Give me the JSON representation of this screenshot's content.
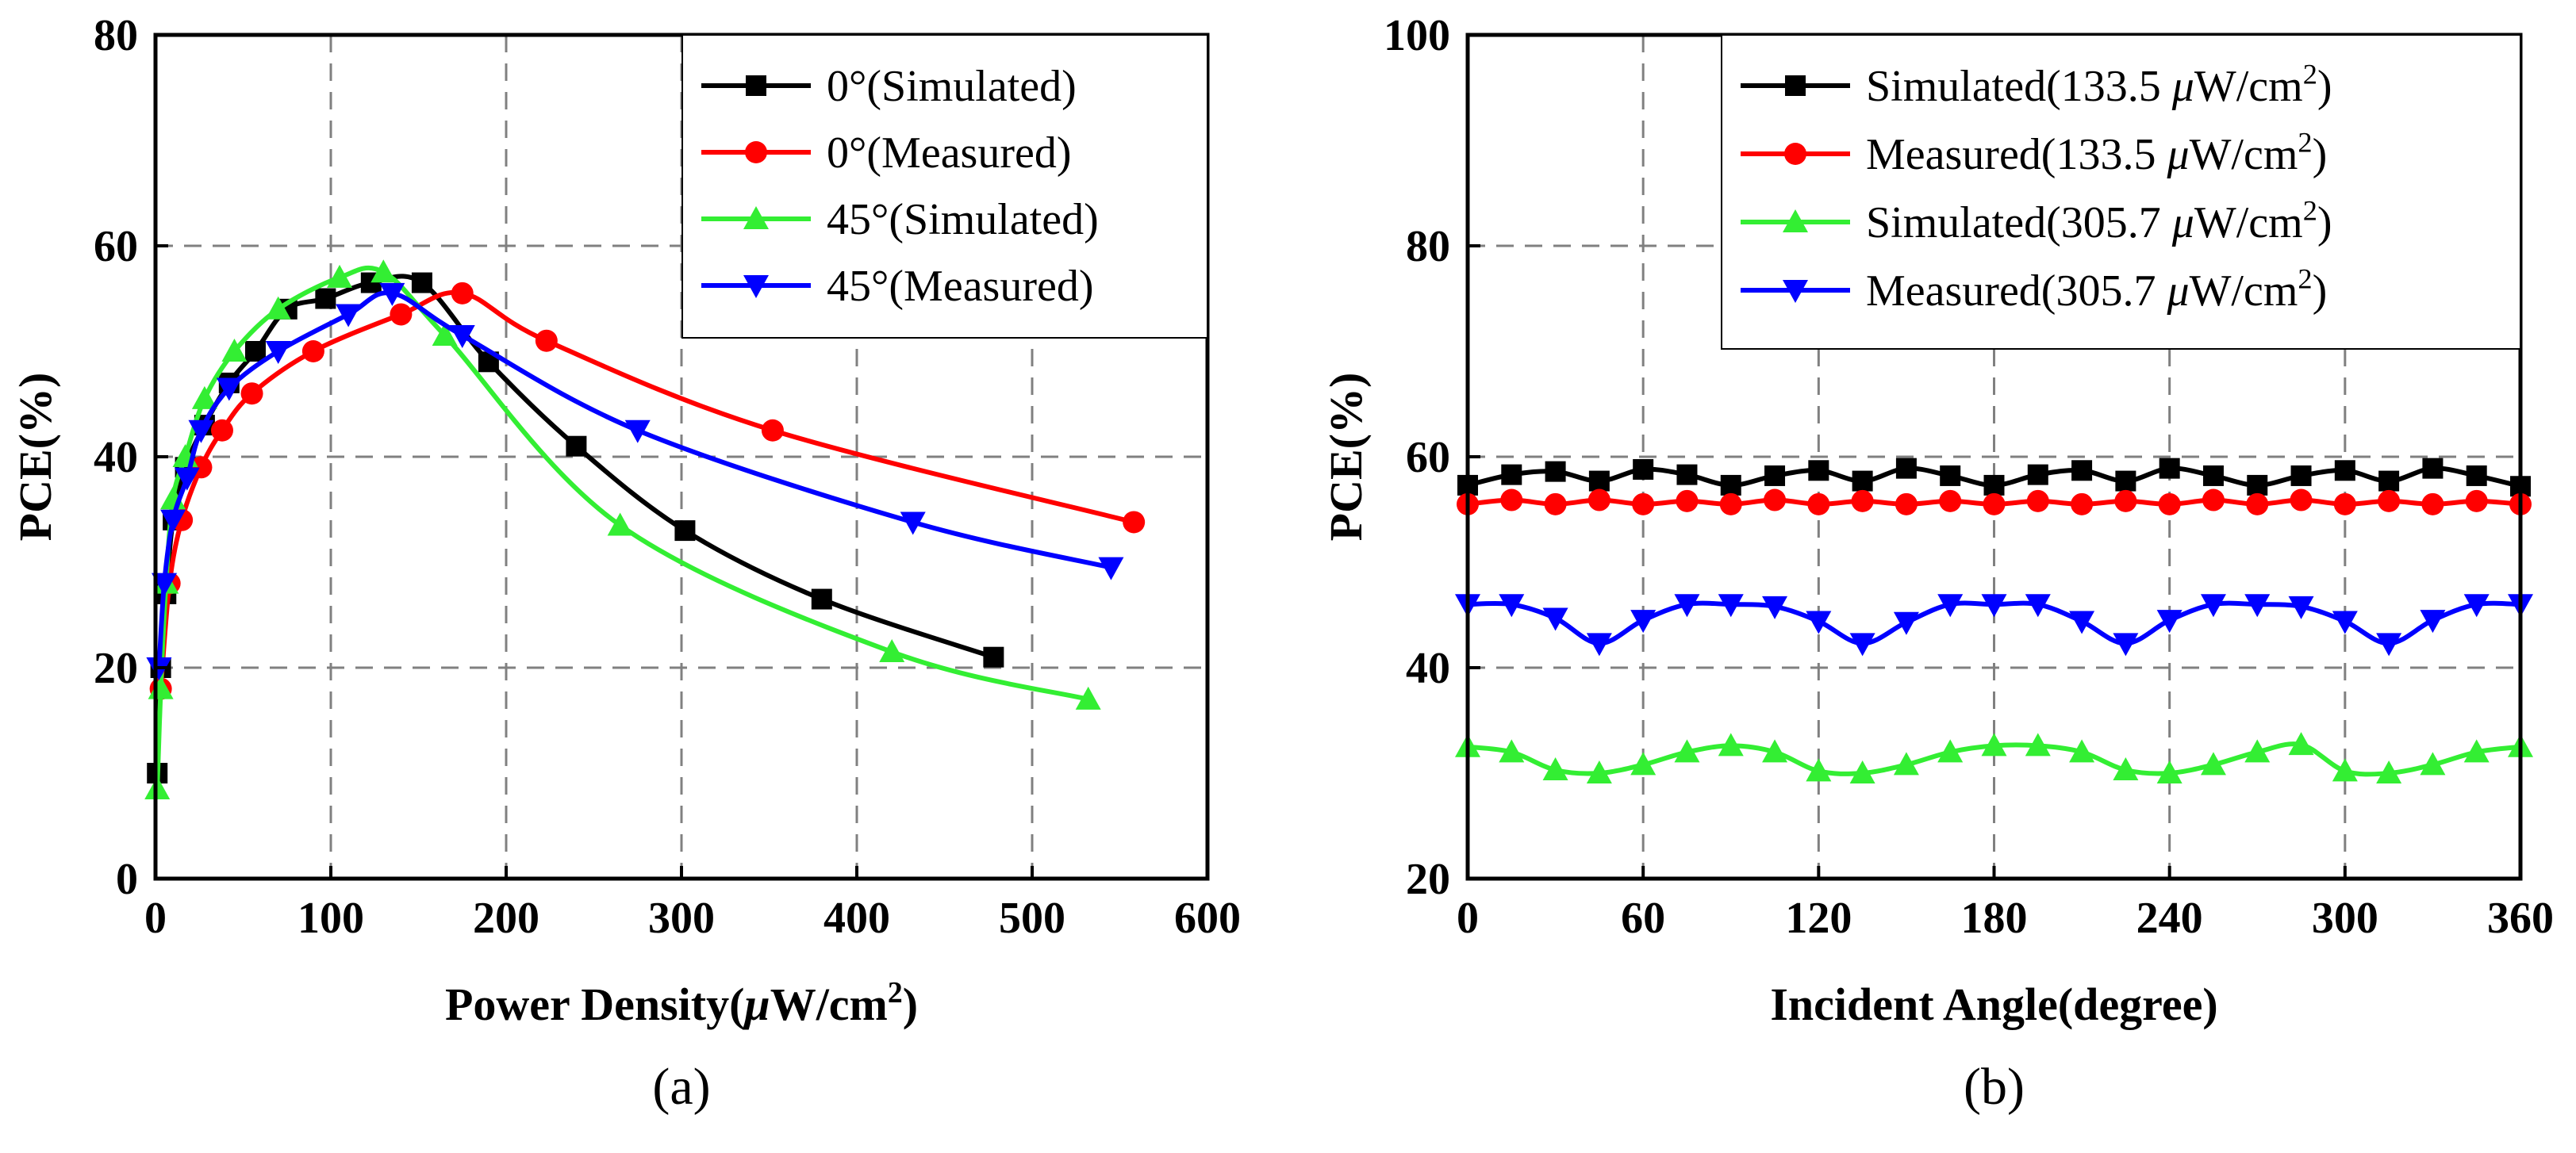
{
  "colors": {
    "black": "#000000",
    "red": "#ff0000",
    "green": "#33ee33",
    "blue": "#0000ff",
    "grid": "#808080"
  },
  "chart_data": [
    {
      "type": "line",
      "panel_label": "(a)",
      "xlabel": "Power Density(μW/cm²)",
      "ylabel": "PCE(%)",
      "xlim": [
        0,
        600
      ],
      "ylim": [
        0,
        80
      ],
      "xticks": [
        0,
        100,
        200,
        300,
        400,
        500,
        600
      ],
      "yticks": [
        0,
        20,
        40,
        60,
        80
      ],
      "grid": true,
      "legend_position": "top-right",
      "series": [
        {
          "name": "0°(Simulated)",
          "color": "#000000",
          "marker": "square",
          "x": [
            1,
            3,
            6,
            10,
            17,
            28,
            42,
            57,
            75,
            97,
            123,
            152,
            190,
            240,
            302,
            380,
            478
          ],
          "y": [
            10,
            20,
            27,
            34,
            39,
            43,
            47,
            50,
            54,
            55,
            56.5,
            56.5,
            49,
            41,
            33,
            26.5,
            21
          ]
        },
        {
          "name": "0°(Measured)",
          "color": "#ff0000",
          "marker": "circle",
          "x": [
            3,
            8,
            15,
            26,
            38,
            55,
            90,
            140,
            175,
            223,
            352,
            558
          ],
          "y": [
            18,
            28,
            34,
            39,
            42.5,
            46,
            50,
            53.5,
            55.5,
            51,
            42.5,
            33.8
          ]
        },
        {
          "name": "45°(Simulated)",
          "color": "#33ee33",
          "marker": "triangle-up",
          "x": [
            1,
            3,
            6,
            10,
            17,
            28,
            45,
            70,
            105,
            130,
            165,
            265,
            420,
            532
          ],
          "y": [
            8.5,
            18,
            28,
            36,
            40,
            45.5,
            50,
            54,
            57,
            57.5,
            51.5,
            33.5,
            21.5,
            17
          ]
        },
        {
          "name": "45°(Measured)",
          "color": "#0000ff",
          "marker": "triangle-down",
          "x": [
            2,
            5,
            10,
            18,
            26,
            42,
            70,
            110,
            135,
            175,
            275,
            432,
            545
          ],
          "y": [
            20,
            28,
            34,
            38,
            42.5,
            46.5,
            50,
            53.5,
            55.5,
            51.5,
            42.5,
            33.8,
            29.5
          ]
        }
      ]
    },
    {
      "type": "line",
      "panel_label": "(b)",
      "xlabel": "Incident Angle(degree)",
      "ylabel": "PCE(%)",
      "xlim": [
        0,
        360
      ],
      "ylim": [
        20,
        100
      ],
      "xticks": [
        0,
        60,
        120,
        180,
        240,
        300,
        360
      ],
      "yticks": [
        20,
        40,
        60,
        80,
        100
      ],
      "grid": true,
      "legend_position": "top-right",
      "x": [
        0,
        15,
        30,
        45,
        60,
        75,
        90,
        105,
        120,
        135,
        150,
        165,
        180,
        195,
        210,
        225,
        240,
        255,
        270,
        285,
        300,
        315,
        330,
        345,
        360
      ],
      "series": [
        {
          "name": "Simulated(133.5 μW/cm²)",
          "color": "#000000",
          "marker": "square",
          "values": [
            57.3,
            58.3,
            58.6,
            57.7,
            58.8,
            58.3,
            57.3,
            58.2,
            58.7,
            57.7,
            58.9,
            58.2,
            57.3,
            58.3,
            58.7,
            57.7,
            58.9,
            58.2,
            57.3,
            58.2,
            58.7,
            57.7,
            58.9,
            58.2,
            57.2
          ]
        },
        {
          "name": "Measured(133.5 μW/cm²)",
          "color": "#ff0000",
          "marker": "circle",
          "values": [
            55.5,
            55.9,
            55.5,
            55.9,
            55.5,
            55.8,
            55.5,
            55.9,
            55.5,
            55.8,
            55.5,
            55.8,
            55.5,
            55.8,
            55.5,
            55.8,
            55.5,
            55.9,
            55.5,
            55.9,
            55.5,
            55.8,
            55.5,
            55.8,
            55.5
          ]
        },
        {
          "name": "Simulated(305.7 μW/cm²)",
          "color": "#33ee33",
          "marker": "triangle-up",
          "values": [
            32.5,
            32.0,
            30.3,
            30.0,
            30.8,
            32.0,
            32.6,
            32.0,
            30.2,
            30.0,
            30.8,
            32.0,
            32.6,
            32.6,
            32.0,
            30.3,
            30.0,
            30.8,
            32.0,
            32.7,
            30.2,
            30.0,
            30.8,
            32.0,
            32.5
          ]
        },
        {
          "name": "Measured(305.7 μW/cm²)",
          "color": "#0000ff",
          "marker": "triangle-down",
          "values": [
            46.0,
            46.0,
            44.7,
            42.3,
            44.5,
            46.0,
            46.0,
            45.8,
            44.4,
            42.3,
            44.3,
            46.0,
            46.0,
            46.0,
            44.4,
            42.3,
            44.5,
            46.0,
            46.0,
            45.8,
            44.4,
            42.3,
            44.5,
            46.0,
            46.0
          ]
        }
      ]
    }
  ]
}
